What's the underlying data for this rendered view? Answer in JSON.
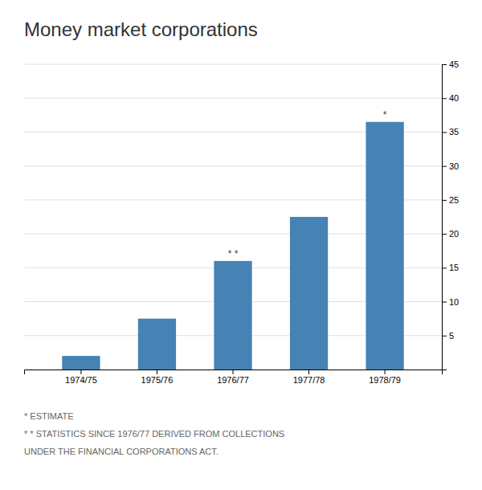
{
  "chart_data": {
    "type": "bar",
    "title": "Money market corporations",
    "categories": [
      "1974/75",
      "1975/76",
      "1976/77",
      "1977/78",
      "1978/79"
    ],
    "values": [
      2.0,
      7.5,
      16.0,
      22.5,
      36.5
    ],
    "ylim": [
      0,
      45
    ],
    "yticks": [
      5,
      10,
      15,
      20,
      25,
      30,
      35,
      40,
      45
    ],
    "grid": true,
    "annotations": [
      {
        "category": "1976/77",
        "text": "* *"
      },
      {
        "category": "1978/79",
        "text": "*"
      }
    ],
    "footnotes": [
      "* ESTIMATE",
      "* * STATISTICS SINCE 1976/77 DERIVED FROM COLLECTIONS",
      "UNDER THE FINANCIAL CORPORATIONS ACT."
    ]
  }
}
